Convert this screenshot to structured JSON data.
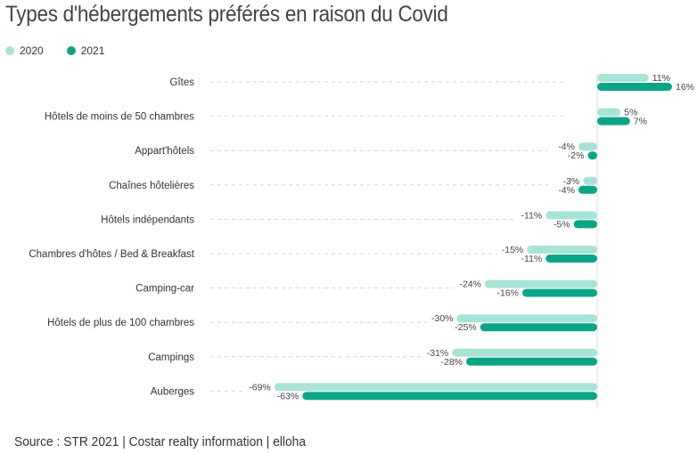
{
  "title": "Types d'hébergements préférés en raison du Covid",
  "source": "Source : STR 2021 | Costar realty information | elloha",
  "colors": {
    "2020": "#a8e4d6",
    "2021": "#0aa586"
  },
  "chart_data": {
    "type": "bar",
    "orientation": "horizontal",
    "title": "Types d'hébergements préférés en raison du Covid",
    "categories": [
      "Gîtes",
      "Hôtels de moins de 50 chambres",
      "Appart'hôtels",
      "Chaînes hôtelières",
      "Hôtels indépendants",
      "Chambres d'hôtes / Bed & Breakfast",
      "Camping-car",
      "Hôtels de plus de 100 chambres",
      "Campings",
      "Auberges"
    ],
    "series": [
      {
        "name": "2020",
        "values": [
          11,
          5,
          -4,
          -3,
          -11,
          -15,
          -24,
          -30,
          -31,
          -69
        ]
      },
      {
        "name": "2021",
        "values": [
          16,
          7,
          -2,
          -4,
          -5,
          -11,
          -16,
          -25,
          -28,
          -63
        ]
      }
    ],
    "labels": [
      [
        "11%",
        "5%",
        "-4%",
        "-3%",
        "-11%",
        "-15%",
        "-24%",
        "-30%",
        "-31%",
        "-69%"
      ],
      [
        "16%",
        "7%",
        "-2%",
        "-4%",
        "-5%",
        "-11%",
        "-16%",
        "-25%",
        "-28%",
        "-63%"
      ]
    ],
    "legend_position": "top-left",
    "grid": false,
    "xlim": [
      -69,
      16
    ]
  }
}
